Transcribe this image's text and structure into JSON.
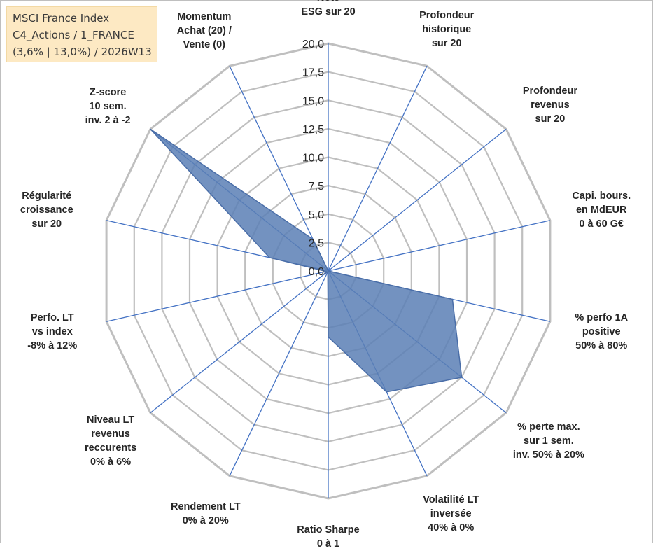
{
  "title_box": {
    "line1": "MSCI France Index",
    "line2": "C4_Actions / 1_FRANCE",
    "line3": "(3,6% | 13,0%) / 2026W13"
  },
  "chart_data": {
    "type": "radar",
    "range": [
      0,
      20
    ],
    "rings": [
      0,
      2.5,
      5,
      7.5,
      10,
      12.5,
      15,
      17.5,
      20
    ],
    "tick_labels": [
      "0,0",
      "2,5",
      "5,0",
      "7,5",
      "10,0",
      "12,5",
      "15,0",
      "17,5",
      "20,0"
    ],
    "categories": [
      {
        "lines": [
          "Note",
          "ESG sur 20"
        ]
      },
      {
        "lines": [
          "Profondeur",
          "historique",
          "sur 20"
        ]
      },
      {
        "lines": [
          "Profondeur",
          "revenus",
          "sur 20"
        ]
      },
      {
        "lines": [
          "Capi. bours.",
          "en MdEUR",
          "0 à 60 G€"
        ]
      },
      {
        "lines": [
          "% perfo 1A",
          "positive",
          "50% à 80%"
        ]
      },
      {
        "lines": [
          "% perte max.",
          "sur 1 sem.",
          "inv. 50% à 20%"
        ]
      },
      {
        "lines": [
          "Volatilité LT",
          "inversée",
          "40% à 0%"
        ]
      },
      {
        "lines": [
          "Ratio Sharpe",
          "0 à 1"
        ]
      },
      {
        "lines": [
          "Rendement LT",
          "0% à 20%"
        ]
      },
      {
        "lines": [
          "Niveau LT",
          "revenus",
          "reccurents",
          "0% à 6%"
        ]
      },
      {
        "lines": [
          "Perfo. LT",
          "vs index",
          "-8% à 12%"
        ]
      },
      {
        "lines": [
          "Régularité",
          "croissance",
          "sur 20"
        ]
      },
      {
        "lines": [
          "Z-score",
          "10 sem.",
          "inv. 2 à -2"
        ]
      },
      {
        "lines": [
          "Momentum",
          "Achat (20) /",
          "Vente (0)"
        ]
      }
    ],
    "series": [
      {
        "name": "MSCI France Index",
        "values": [
          0,
          0,
          0,
          0,
          11.2,
          15.0,
          11.8,
          5.8,
          0.1,
          0.5,
          0.2,
          5.3,
          20.0,
          3.1
        ],
        "fill": "#5b7fb5",
        "stroke": "#4a6ea8"
      }
    ],
    "grid_color": "#bfbfbf",
    "spoke_color": "#4472c4"
  }
}
